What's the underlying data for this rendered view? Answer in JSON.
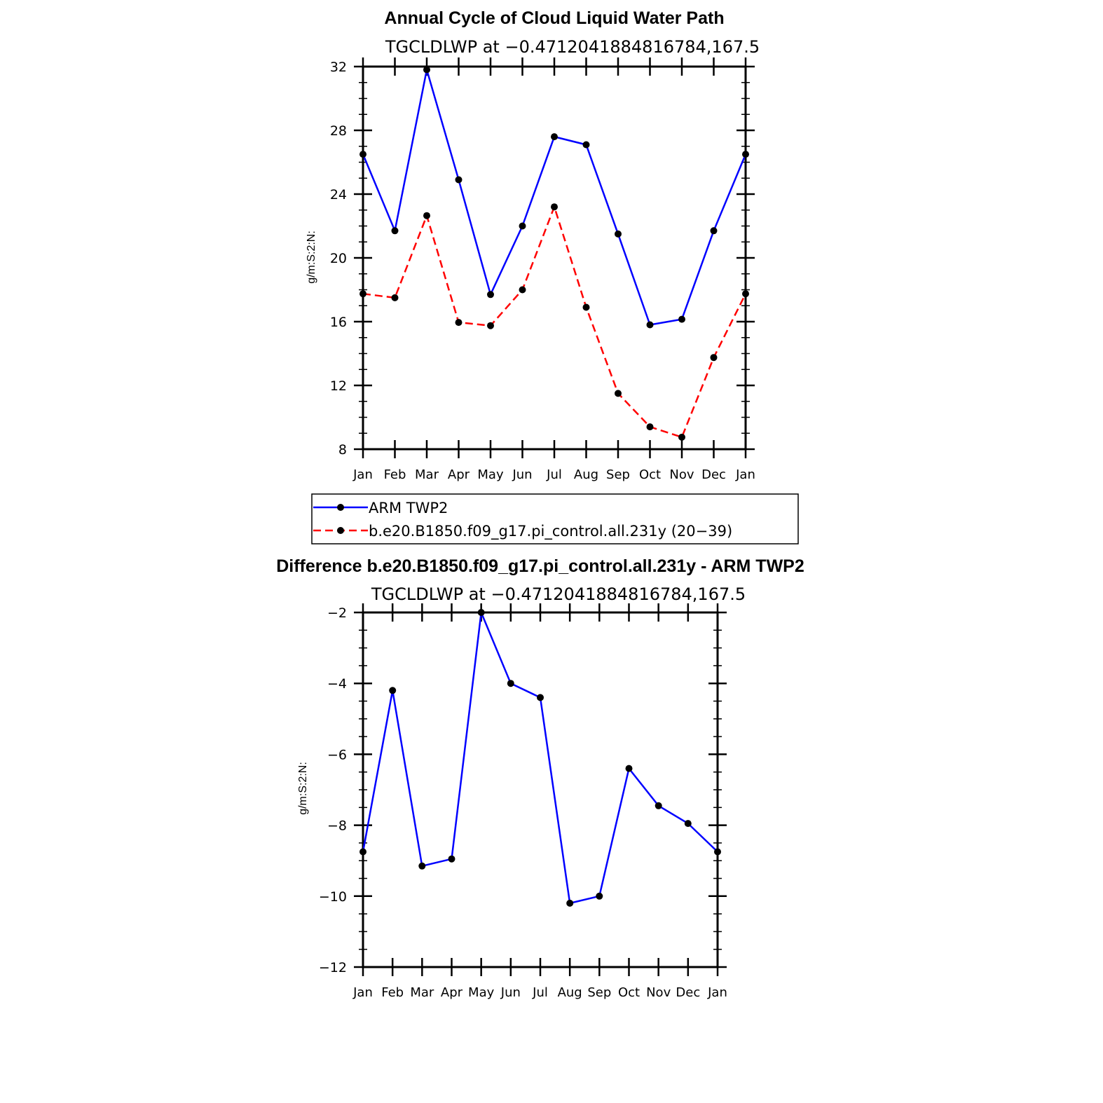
{
  "chart_data": [
    {
      "type": "line",
      "title": "Annual Cycle of Cloud Liquid Water Path",
      "subtitle": "TGCLDLWP at −0.4712041884816784,167.5",
      "ylabel": "g/m:S:2:N:",
      "xlabel": "",
      "categories": [
        "Jan",
        "Feb",
        "Mar",
        "Apr",
        "May",
        "Jun",
        "Jul",
        "Aug",
        "Sep",
        "Oct",
        "Nov",
        "Dec",
        "Jan"
      ],
      "ylim": [
        8,
        32
      ],
      "yticks": [
        "32",
        "28",
        "24",
        "20",
        "16",
        "12",
        "8"
      ],
      "grid": false,
      "series": [
        {
          "name": "ARM TWP2",
          "color": "#0000ff",
          "style": "solid",
          "values": [
            26.5,
            21.7,
            31.8,
            24.9,
            17.7,
            22.0,
            27.6,
            27.1,
            21.5,
            15.8,
            16.15,
            21.7,
            26.5
          ]
        },
        {
          "name": "b.e20.B1850.f09_g17.pi_control.all.231y (20−39)",
          "color": "#ff0000",
          "style": "dashed",
          "values": [
            17.75,
            17.5,
            22.65,
            15.95,
            15.75,
            18.0,
            23.2,
            16.9,
            11.5,
            9.4,
            8.75,
            13.75,
            17.75
          ]
        }
      ],
      "legend": {
        "placement": "below",
        "entries": [
          "ARM TWP2",
          "b.e20.B1850.f09_g17.pi_control.all.231y (20−39)"
        ]
      }
    },
    {
      "type": "line",
      "title": "Difference b.e20.B1850.f09_g17.pi_control.all.231y - ARM TWP2",
      "subtitle": "TGCLDLWP at −0.4712041884816784,167.5",
      "ylabel": "g/m:S:2:N:",
      "xlabel": "",
      "categories": [
        "Jan",
        "Feb",
        "Mar",
        "Apr",
        "May",
        "Jun",
        "Jul",
        "Aug",
        "Sep",
        "Oct",
        "Nov",
        "Dec",
        "Jan"
      ],
      "ylim": [
        -12,
        -2
      ],
      "yticks": [
        "−2",
        "−4",
        "−6",
        "−8",
        "−10",
        "−12"
      ],
      "grid": false,
      "series": [
        {
          "color": "#0000ff",
          "style": "solid",
          "values": [
            -8.75,
            -4.2,
            -9.15,
            -8.95,
            -2.0,
            -4.0,
            -4.4,
            -10.2,
            -10.0,
            -6.4,
            -7.45,
            -7.95,
            -8.75
          ]
        }
      ]
    }
  ]
}
